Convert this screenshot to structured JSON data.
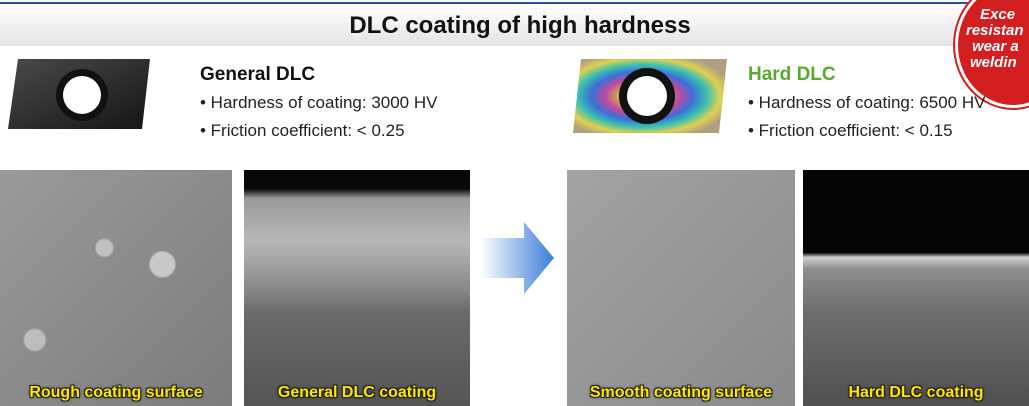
{
  "header": {
    "title": "DLC coating of high hardness"
  },
  "badge": {
    "lines": [
      "Exce",
      "resistan",
      "wear a",
      "weldin"
    ]
  },
  "panels": [
    {
      "name": "General DLC",
      "bullets": [
        "• Hardness of coating: 3000 HV",
        "• Friction coefficient: < 0.25"
      ],
      "photos": [
        "Rough coating surface",
        "General DLC coating"
      ]
    },
    {
      "name": "Hard DLC",
      "bullets": [
        "• Hardness of coating: 6500 HV",
        "• Friction coefficient: < 0.15"
      ],
      "photos": [
        "Smooth coating surface",
        "Hard DLC coating"
      ]
    }
  ]
}
